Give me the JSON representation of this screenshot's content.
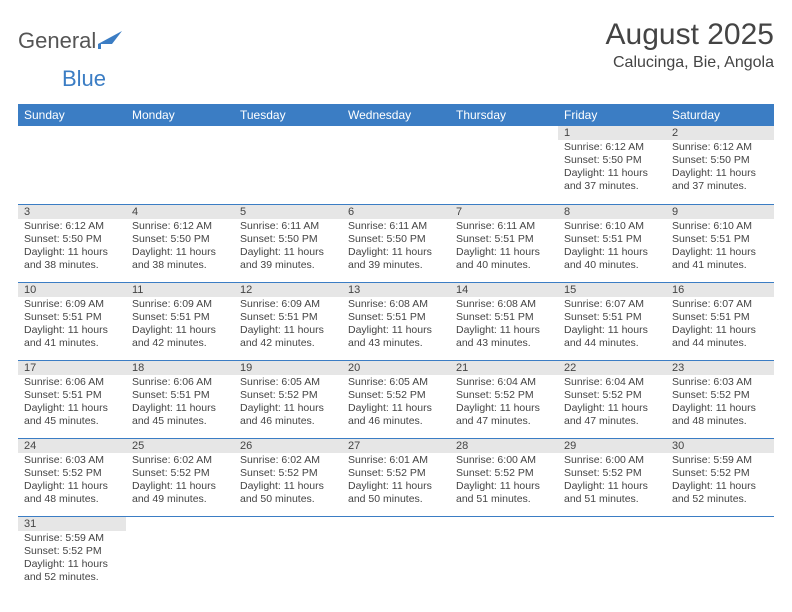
{
  "logo": {
    "text1": "General",
    "text2": "Blue"
  },
  "title": "August 2025",
  "location": "Calucinga, Bie, Angola",
  "weekdays": [
    "Sunday",
    "Monday",
    "Tuesday",
    "Wednesday",
    "Thursday",
    "Friday",
    "Saturday"
  ],
  "colors": {
    "header_bg": "#3b7dc4",
    "header_text": "#ffffff",
    "daynum_bg": "#e6e6e6",
    "cell_border": "#3b7dc4",
    "text": "#444444",
    "logo_gray": "#555555",
    "logo_blue": "#3b7dc4",
    "background": "#ffffff"
  },
  "weeks": [
    [
      null,
      null,
      null,
      null,
      null,
      {
        "n": "1",
        "sunrise": "6:12 AM",
        "sunset": "5:50 PM",
        "daylight": "11 hours and 37 minutes."
      },
      {
        "n": "2",
        "sunrise": "6:12 AM",
        "sunset": "5:50 PM",
        "daylight": "11 hours and 37 minutes."
      }
    ],
    [
      {
        "n": "3",
        "sunrise": "6:12 AM",
        "sunset": "5:50 PM",
        "daylight": "11 hours and 38 minutes."
      },
      {
        "n": "4",
        "sunrise": "6:12 AM",
        "sunset": "5:50 PM",
        "daylight": "11 hours and 38 minutes."
      },
      {
        "n": "5",
        "sunrise": "6:11 AM",
        "sunset": "5:50 PM",
        "daylight": "11 hours and 39 minutes."
      },
      {
        "n": "6",
        "sunrise": "6:11 AM",
        "sunset": "5:50 PM",
        "daylight": "11 hours and 39 minutes."
      },
      {
        "n": "7",
        "sunrise": "6:11 AM",
        "sunset": "5:51 PM",
        "daylight": "11 hours and 40 minutes."
      },
      {
        "n": "8",
        "sunrise": "6:10 AM",
        "sunset": "5:51 PM",
        "daylight": "11 hours and 40 minutes."
      },
      {
        "n": "9",
        "sunrise": "6:10 AM",
        "sunset": "5:51 PM",
        "daylight": "11 hours and 41 minutes."
      }
    ],
    [
      {
        "n": "10",
        "sunrise": "6:09 AM",
        "sunset": "5:51 PM",
        "daylight": "11 hours and 41 minutes."
      },
      {
        "n": "11",
        "sunrise": "6:09 AM",
        "sunset": "5:51 PM",
        "daylight": "11 hours and 42 minutes."
      },
      {
        "n": "12",
        "sunrise": "6:09 AM",
        "sunset": "5:51 PM",
        "daylight": "11 hours and 42 minutes."
      },
      {
        "n": "13",
        "sunrise": "6:08 AM",
        "sunset": "5:51 PM",
        "daylight": "11 hours and 43 minutes."
      },
      {
        "n": "14",
        "sunrise": "6:08 AM",
        "sunset": "5:51 PM",
        "daylight": "11 hours and 43 minutes."
      },
      {
        "n": "15",
        "sunrise": "6:07 AM",
        "sunset": "5:51 PM",
        "daylight": "11 hours and 44 minutes."
      },
      {
        "n": "16",
        "sunrise": "6:07 AM",
        "sunset": "5:51 PM",
        "daylight": "11 hours and 44 minutes."
      }
    ],
    [
      {
        "n": "17",
        "sunrise": "6:06 AM",
        "sunset": "5:51 PM",
        "daylight": "11 hours and 45 minutes."
      },
      {
        "n": "18",
        "sunrise": "6:06 AM",
        "sunset": "5:51 PM",
        "daylight": "11 hours and 45 minutes."
      },
      {
        "n": "19",
        "sunrise": "6:05 AM",
        "sunset": "5:52 PM",
        "daylight": "11 hours and 46 minutes."
      },
      {
        "n": "20",
        "sunrise": "6:05 AM",
        "sunset": "5:52 PM",
        "daylight": "11 hours and 46 minutes."
      },
      {
        "n": "21",
        "sunrise": "6:04 AM",
        "sunset": "5:52 PM",
        "daylight": "11 hours and 47 minutes."
      },
      {
        "n": "22",
        "sunrise": "6:04 AM",
        "sunset": "5:52 PM",
        "daylight": "11 hours and 47 minutes."
      },
      {
        "n": "23",
        "sunrise": "6:03 AM",
        "sunset": "5:52 PM",
        "daylight": "11 hours and 48 minutes."
      }
    ],
    [
      {
        "n": "24",
        "sunrise": "6:03 AM",
        "sunset": "5:52 PM",
        "daylight": "11 hours and 48 minutes."
      },
      {
        "n": "25",
        "sunrise": "6:02 AM",
        "sunset": "5:52 PM",
        "daylight": "11 hours and 49 minutes."
      },
      {
        "n": "26",
        "sunrise": "6:02 AM",
        "sunset": "5:52 PM",
        "daylight": "11 hours and 50 minutes."
      },
      {
        "n": "27",
        "sunrise": "6:01 AM",
        "sunset": "5:52 PM",
        "daylight": "11 hours and 50 minutes."
      },
      {
        "n": "28",
        "sunrise": "6:00 AM",
        "sunset": "5:52 PM",
        "daylight": "11 hours and 51 minutes."
      },
      {
        "n": "29",
        "sunrise": "6:00 AM",
        "sunset": "5:52 PM",
        "daylight": "11 hours and 51 minutes."
      },
      {
        "n": "30",
        "sunrise": "5:59 AM",
        "sunset": "5:52 PM",
        "daylight": "11 hours and 52 minutes."
      }
    ],
    [
      {
        "n": "31",
        "sunrise": "5:59 AM",
        "sunset": "5:52 PM",
        "daylight": "11 hours and 52 minutes."
      },
      null,
      null,
      null,
      null,
      null,
      null
    ]
  ],
  "labels": {
    "sunrise": "Sunrise: ",
    "sunset": "Sunset: ",
    "daylight": "Daylight: "
  }
}
